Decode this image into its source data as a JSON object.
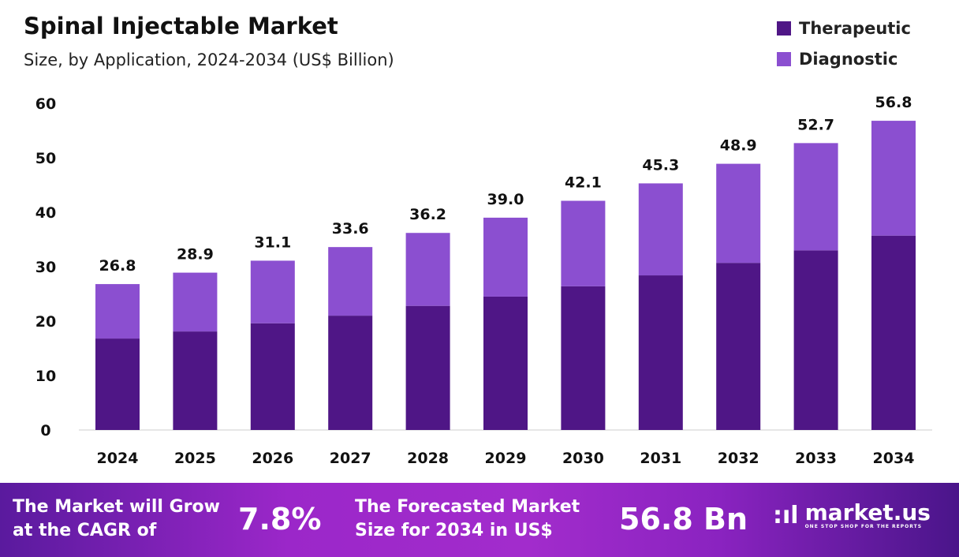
{
  "chart_data": {
    "type": "bar",
    "stacked": true,
    "title": "Spinal Injectable Market",
    "subtitle": "Size, by Application, 2024-2034 (US$ Billion)",
    "categories": [
      "2024",
      "2025",
      "2026",
      "2027",
      "2028",
      "2029",
      "2030",
      "2031",
      "2032",
      "2033",
      "2034"
    ],
    "series": [
      {
        "name": "Therapeutic",
        "color": "#4f1686",
        "values": [
          16.8,
          18.1,
          19.6,
          21.0,
          22.8,
          24.5,
          26.4,
          28.4,
          30.7,
          33.0,
          35.7
        ]
      },
      {
        "name": "Diagnostic",
        "color": "#8b4fd0",
        "values": [
          10.0,
          10.8,
          11.5,
          12.6,
          13.4,
          14.5,
          15.7,
          16.9,
          18.2,
          19.7,
          21.1
        ]
      }
    ],
    "totals": [
      "26.8",
      "28.9",
      "31.1",
      "33.6",
      "36.2",
      "39.0",
      "42.1",
      "45.3",
      "48.9",
      "52.7",
      "56.8"
    ],
    "yticks": [
      "0",
      "10",
      "20",
      "30",
      "40",
      "50",
      "60"
    ],
    "ylim": [
      0,
      60
    ],
    "grid": false,
    "legend": "top-right"
  },
  "banner": {
    "cagr_text": "The Market will Grow at the CAGR of",
    "cagr_line1": "The Market will Grow",
    "cagr_line2": "at the CAGR of",
    "cagr_value": "7.8%",
    "forecast_line1": "The Forecasted Market",
    "forecast_line2": "Size for 2034 in US$",
    "forecast_value": "56.8 Bn",
    "logo_name": "market.us",
    "logo_tagline": "ONE STOP SHOP FOR THE REPORTS"
  }
}
